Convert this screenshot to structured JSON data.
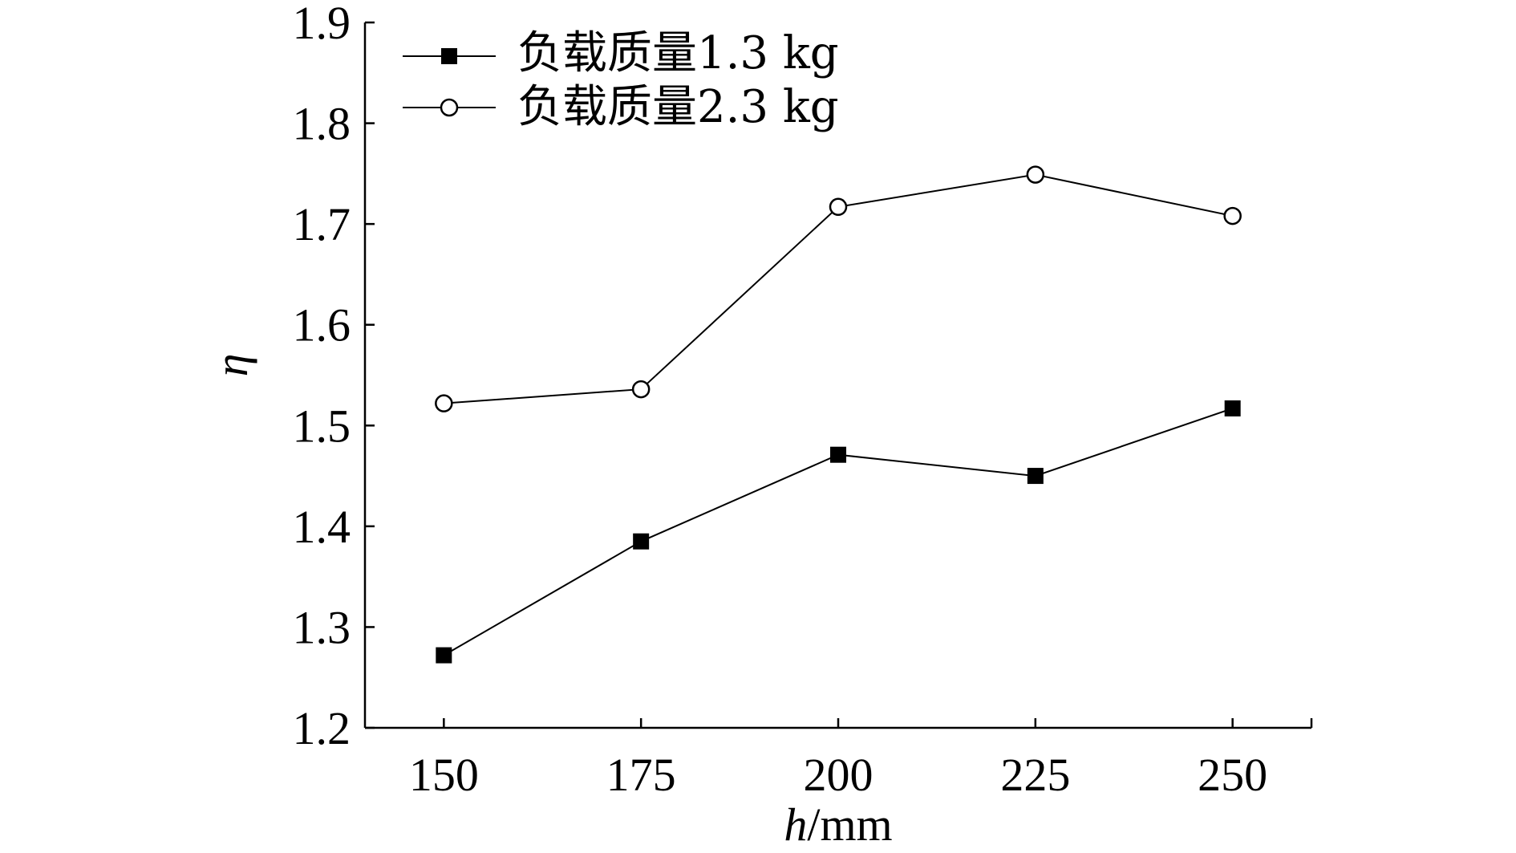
{
  "chart_data": {
    "type": "line",
    "x": [
      150,
      175,
      200,
      225,
      250
    ],
    "xticks": [
      "150",
      "175",
      "200",
      "225",
      "250"
    ],
    "yticks": [
      "1.2",
      "1.3",
      "1.4",
      "1.5",
      "1.6",
      "1.7",
      "1.8",
      "1.9"
    ],
    "ylim": [
      1.2,
      1.9
    ],
    "xlim": [
      140,
      260
    ],
    "x_label_italic": "h",
    "x_label_unit": "/mm",
    "y_label": "η",
    "grid": false,
    "legend_position": "top-left",
    "series": [
      {
        "name": "负载质量1.3 kg",
        "marker": "filled-square",
        "values": [
          1.272,
          1.385,
          1.471,
          1.45,
          1.517
        ]
      },
      {
        "name": "负载质量2.3 kg",
        "marker": "open-circle",
        "values": [
          1.522,
          1.536,
          1.717,
          1.749,
          1.708
        ]
      }
    ],
    "colors": {
      "line": "#000000",
      "background": "#ffffff"
    }
  }
}
